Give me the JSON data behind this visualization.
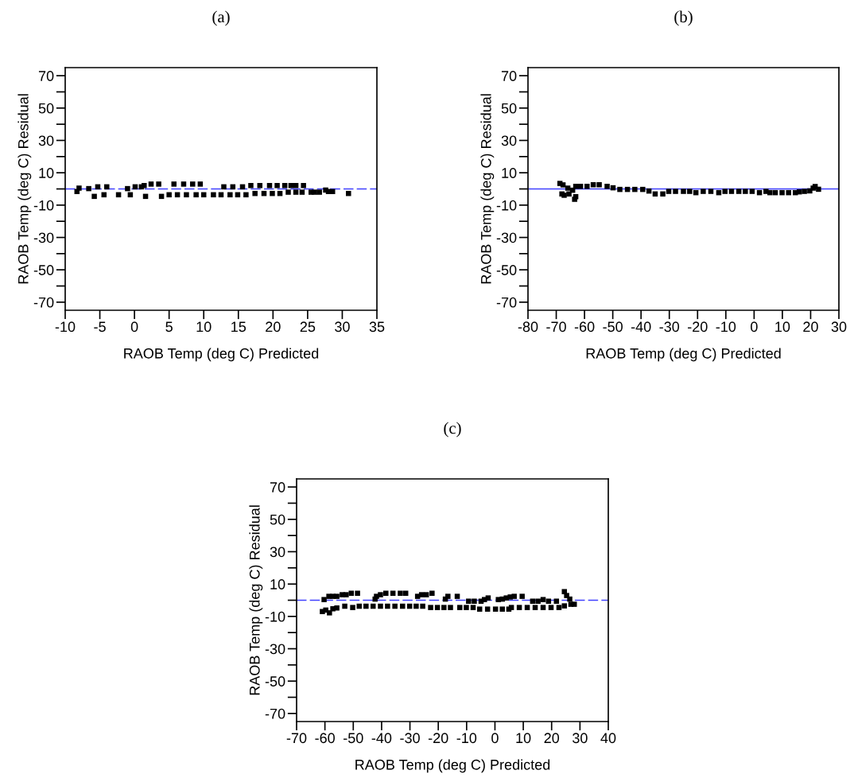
{
  "chart_data": [
    {
      "type": "scatter",
      "title": "(a)",
      "xlabel": "RAOB Temp (deg C) Predicted",
      "ylabel": "RAOB Temp (deg C) Residual",
      "xlim": [
        -10,
        35
      ],
      "xticks": [
        -10,
        -5,
        0,
        5,
        10,
        15,
        20,
        25,
        30,
        35
      ],
      "ylim": [
        -75,
        75
      ],
      "yticks": [
        70,
        {
          "value": 60,
          "label": null
        },
        50,
        {
          "value": 40,
          "label": null
        },
        30,
        {
          "value": 20,
          "label": null
        },
        10,
        {
          "value": 0,
          "label": null
        },
        -10,
        {
          "value": -20,
          "label": null
        },
        -30,
        {
          "value": -40,
          "label": null
        },
        -50,
        {
          "value": -60,
          "label": null
        },
        -70
      ],
      "grid": false,
      "marker": "square",
      "ref_lines": [
        {
          "axis": "y",
          "value": 0,
          "label": null,
          "color": "#4040ff",
          "line_style": "dashed"
        }
      ],
      "series": [
        {
          "color": "#000000",
          "x": [
            -8.3,
            -8.0,
            -6.6,
            -5.8,
            -5.3,
            -4.4,
            -4.0,
            -2.3,
            -1.0,
            -0.6,
            0.1,
            1.0,
            1.4,
            1.6,
            2.4,
            3.5,
            3.9,
            5.0,
            5.7,
            6.2,
            7.1,
            7.5,
            8.4,
            8.9,
            9.5,
            10.0,
            11.4,
            12.5,
            12.9,
            13.8,
            14.2,
            14.9,
            15.6,
            16.1,
            16.8,
            17.4,
            18.1,
            18.7,
            19.5,
            19.9,
            20.6,
            21.0,
            21.7,
            22.2,
            22.6,
            23.3,
            23.3,
            24.2,
            24.4,
            25.5,
            26.0,
            26.7,
            27.6,
            28.0,
            28.6,
            30.9
          ],
          "values": [
            -1.6,
            0.5,
            0.2,
            -4.6,
            1.3,
            -3.6,
            1.3,
            -3.6,
            0.2,
            -3.6,
            1.3,
            1.3,
            2.1,
            -4.6,
            3.0,
            3.0,
            -4.6,
            -3.6,
            3.0,
            -3.6,
            3.0,
            -3.6,
            3.0,
            -3.6,
            3.0,
            -3.6,
            -3.6,
            -3.6,
            1.3,
            -3.6,
            1.3,
            -3.6,
            1.3,
            -3.6,
            2.1,
            -2.8,
            2.1,
            -2.8,
            2.1,
            -2.8,
            2.1,
            -2.8,
            2.1,
            -2.0,
            2.1,
            2.1,
            -2.0,
            -2.0,
            2.1,
            -2.0,
            -2.0,
            -2.0,
            -0.7,
            -1.6,
            -1.6,
            -2.8
          ]
        }
      ]
    },
    {
      "type": "scatter",
      "title": "(b)",
      "xlabel": "RAOB Temp (deg C) Predicted",
      "ylabel": "RAOB Temp (deg C) Residual",
      "xlim": [
        -80,
        30
      ],
      "xticks": [
        -80,
        -70,
        -60,
        -50,
        -40,
        -30,
        -20,
        -10,
        0,
        10,
        20,
        30
      ],
      "ylim": [
        -75,
        75
      ],
      "yticks": [
        70,
        {
          "value": 60,
          "label": null
        },
        50,
        {
          "value": 40,
          "label": null
        },
        30,
        {
          "value": 20,
          "label": null
        },
        10,
        {
          "value": 0,
          "label": null
        },
        -10,
        {
          "value": -20,
          "label": null
        },
        -30,
        {
          "value": -40,
          "label": null
        },
        -50,
        {
          "value": -60,
          "label": null
        },
        -70
      ],
      "grid": false,
      "marker": "square",
      "ref_lines": [
        {
          "axis": "y",
          "value": 0,
          "label": null,
          "color": "#4040ff",
          "line_style": "solid"
        }
      ],
      "series": [
        {
          "color": "#000000",
          "x": [
            -68.7,
            -67.6,
            -68.0,
            -67.2,
            -65.9,
            -65.5,
            -64.2,
            -63.5,
            -63.1,
            -63.1,
            -61.4,
            -59.1,
            -56.9,
            -54.8,
            -52.0,
            -49.9,
            -47.5,
            -44.8,
            -42.2,
            -39.4,
            -37.2,
            -35.0,
            -32.3,
            -30.2,
            -27.8,
            -25.0,
            -22.8,
            -20.6,
            -18.0,
            -15.3,
            -12.5,
            -10.3,
            -8.0,
            -5.4,
            -3.1,
            -0.7,
            1.9,
            4.2,
            5.6,
            7.5,
            9.9,
            12.2,
            14.6,
            16.0,
            17.8,
            19.7,
            20.9,
            21.6,
            22.8
          ],
          "values": [
            3.4,
            2.5,
            -3.1,
            -3.9,
            0.5,
            -3.1,
            -0.8,
            -6.4,
            -4.8,
            1.6,
            1.6,
            1.6,
            2.6,
            2.6,
            1.6,
            0.7,
            -0.3,
            -0.3,
            -0.3,
            -0.3,
            -1.3,
            -3.1,
            -3.1,
            -1.5,
            -1.5,
            -1.5,
            -1.5,
            -2.3,
            -1.5,
            -1.5,
            -2.3,
            -1.5,
            -1.5,
            -1.5,
            -1.5,
            -1.5,
            -2.3,
            -1.5,
            -2.3,
            -2.3,
            -2.3,
            -2.3,
            -2.3,
            -1.8,
            -1.5,
            -1.2,
            0.5,
            1.5,
            -0.2
          ]
        }
      ]
    },
    {
      "type": "scatter",
      "title": "(c)",
      "xlabel": "RAOB Temp (deg C) Predicted",
      "ylabel": "RAOB Temp (deg C) Residual",
      "xlim": [
        -70,
        40
      ],
      "xticks": [
        -70,
        -60,
        -50,
        -40,
        -30,
        -20,
        -10,
        0,
        10,
        20,
        30,
        40
      ],
      "ylim": [
        -75,
        75
      ],
      "yticks": [
        70,
        {
          "value": 60,
          "label": null
        },
        50,
        {
          "value": 40,
          "label": null
        },
        30,
        {
          "value": 20,
          "label": null
        },
        10,
        {
          "value": 0,
          "label": null
        },
        -10,
        {
          "value": -20,
          "label": null
        },
        -30,
        {
          "value": -40,
          "label": null
        },
        -50,
        {
          "value": -60,
          "label": null
        },
        -70
      ],
      "grid": false,
      "marker": "square",
      "ref_lines": [
        {
          "axis": "y",
          "value": 0,
          "label": null,
          "color": "#4040ff",
          "line_style": "dashed"
        }
      ],
      "series": [
        {
          "color": "#000000",
          "x": [
            -60.3,
            -58.6,
            -57.2,
            -55.8,
            -53.9,
            -52.5,
            -50.7,
            -48.5,
            -42.3,
            -41.8,
            -40.4,
            -38.5,
            -36.0,
            -33.4,
            -31.5,
            -27.3,
            -25.9,
            -24.2,
            -22.2,
            -17.5,
            -16.6,
            -13.3,
            -9.3,
            -7.3,
            -4.9,
            -3.7,
            -2.4,
            1.2,
            2.6,
            4.0,
            5.4,
            6.8,
            9.6,
            13.3,
            15.2,
            17.0,
            18.9,
            21.7,
            24.5,
            25.3,
            26.4,
            -60.9,
            -59.7,
            -58.4,
            -57.2,
            -55.8,
            -53.0,
            -50.2,
            -47.9,
            -45.5,
            -43.0,
            -40.4,
            -37.9,
            -35.3,
            -32.6,
            -30.1,
            -27.8,
            -25.5,
            -22.7,
            -20.3,
            -18.0,
            -15.7,
            -12.4,
            -10.1,
            -7.7,
            -5.4,
            -2.6,
            0.2,
            2.6,
            4.9,
            5.8,
            8.6,
            11.4,
            14.2,
            17.0,
            19.8,
            22.6,
            24.5,
            26.8,
            28.0
          ],
          "values": [
            0.4,
            2.4,
            2.4,
            2.4,
            3.4,
            3.4,
            4.3,
            4.3,
            0.7,
            2.4,
            3.4,
            4.3,
            4.3,
            4.3,
            4.3,
            2.4,
            3.4,
            3.4,
            4.3,
            0.7,
            2.4,
            2.4,
            -0.6,
            -0.6,
            -0.6,
            0.4,
            1.4,
            0.4,
            0.7,
            1.4,
            2.0,
            2.4,
            2.4,
            -0.6,
            -0.6,
            0.4,
            -0.6,
            -0.6,
            5.3,
            2.9,
            0.7,
            -7.0,
            -6.1,
            -7.8,
            -5.3,
            -4.8,
            -3.7,
            -4.5,
            -3.7,
            -3.7,
            -3.7,
            -3.7,
            -3.7,
            -3.7,
            -3.7,
            -3.7,
            -3.7,
            -3.7,
            -4.5,
            -4.5,
            -4.5,
            -4.5,
            -4.5,
            -4.5,
            -4.5,
            -5.5,
            -5.5,
            -5.5,
            -5.5,
            -5.5,
            -4.5,
            -4.5,
            -4.5,
            -4.5,
            -4.5,
            -4.5,
            -4.5,
            -3.5,
            -2.5,
            -2.5
          ]
        }
      ]
    }
  ]
}
